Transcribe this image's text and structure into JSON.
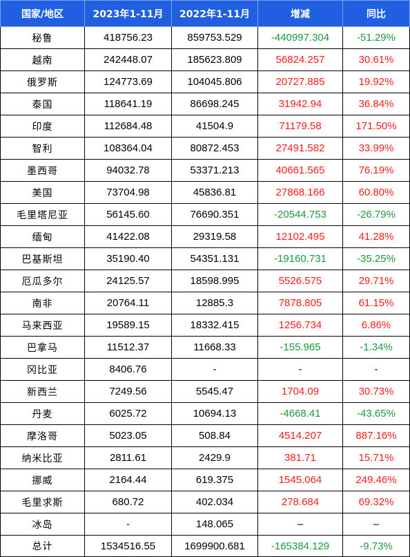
{
  "table": {
    "headers": [
      "国家/地区",
      "2023年1-11月",
      "2022年1-11月",
      "增减",
      "同比"
    ],
    "colors": {
      "header_bg": "#1f5fe0",
      "increase": "#ff1a1a",
      "decrease": "#1a9a3c"
    },
    "rows": [
      {
        "name": "秘鲁",
        "y2023": "418756.23",
        "y2022": "859753.529",
        "change": "-440997.304",
        "yoy": "-51.29%",
        "dir": "neg"
      },
      {
        "name": "越南",
        "y2023": "242448.07",
        "y2022": "185623.809",
        "change": "56824.257",
        "yoy": "30.61%",
        "dir": "pos"
      },
      {
        "name": "俄罗斯",
        "y2023": "124773.69",
        "y2022": "104045.806",
        "change": "20727.885",
        "yoy": "19.92%",
        "dir": "pos"
      },
      {
        "name": "泰国",
        "y2023": "118641.19",
        "y2022": "86698.245",
        "change": "31942.94",
        "yoy": "36.84%",
        "dir": "pos"
      },
      {
        "name": "印度",
        "y2023": "112684.48",
        "y2022": "41504.9",
        "change": "71179.58",
        "yoy": "171.50%",
        "dir": "pos"
      },
      {
        "name": "智利",
        "y2023": "108364.04",
        "y2022": "80872.453",
        "change": "27491.582",
        "yoy": "33.99%",
        "dir": "pos"
      },
      {
        "name": "墨西哥",
        "y2023": "94032.78",
        "y2022": "53371.213",
        "change": "40661.565",
        "yoy": "76.19%",
        "dir": "pos"
      },
      {
        "name": "美国",
        "y2023": "73704.98",
        "y2022": "45836.81",
        "change": "27868.166",
        "yoy": "60.80%",
        "dir": "pos"
      },
      {
        "name": "毛里塔尼亚",
        "y2023": "56145.60",
        "y2022": "76690.351",
        "change": "-20544.753",
        "yoy": "-26.79%",
        "dir": "neg"
      },
      {
        "name": "缅甸",
        "y2023": "41422.08",
        "y2022": "29319.58",
        "change": "12102.495",
        "yoy": "41.28%",
        "dir": "pos"
      },
      {
        "name": "巴基斯坦",
        "y2023": "35190.40",
        "y2022": "54351.131",
        "change": "-19160.731",
        "yoy": "-35.25%",
        "dir": "neg"
      },
      {
        "name": "厄瓜多尔",
        "y2023": "24125.57",
        "y2022": "18598.995",
        "change": "5526.575",
        "yoy": "29.71%",
        "dir": "pos"
      },
      {
        "name": "南非",
        "y2023": "20764.11",
        "y2022": "12885.3",
        "change": "7878.805",
        "yoy": "61.15%",
        "dir": "pos"
      },
      {
        "name": "马来西亚",
        "y2023": "19589.15",
        "y2022": "18332.415",
        "change": "1256.734",
        "yoy": "6.86%",
        "dir": "pos"
      },
      {
        "name": "巴拿马",
        "y2023": "11512.37",
        "y2022": "11668.33",
        "change": "-155.965",
        "yoy": "-1.34%",
        "dir": "neg"
      },
      {
        "name": "冈比亚",
        "y2023": "8406.76",
        "y2022": "-",
        "change": "-",
        "yoy": "-",
        "dir": "neu"
      },
      {
        "name": "新西兰",
        "y2023": "7249.56",
        "y2022": "5545.47",
        "change": "1704.09",
        "yoy": "30.73%",
        "dir": "pos"
      },
      {
        "name": "丹麦",
        "y2023": "6025.72",
        "y2022": "10694.13",
        "change": "-4668.41",
        "yoy": "-43.65%",
        "dir": "neg"
      },
      {
        "name": "摩洛哥",
        "y2023": "5023.05",
        "y2022": "508.84",
        "change": "4514.207",
        "yoy": "887.16%",
        "dir": "pos"
      },
      {
        "name": "纳米比亚",
        "y2023": "2811.61",
        "y2022": "2429.9",
        "change": "381.71",
        "yoy": "15.71%",
        "dir": "pos"
      },
      {
        "name": "挪威",
        "y2023": "2164.44",
        "y2022": "619.375",
        "change": "1545.064",
        "yoy": "249.46%",
        "dir": "pos"
      },
      {
        "name": "毛里求斯",
        "y2023": "680.72",
        "y2022": "402.034",
        "change": "278.684",
        "yoy": "69.32%",
        "dir": "pos"
      },
      {
        "name": "冰岛",
        "y2023": "-",
        "y2022": "148.065",
        "change": "–",
        "yoy": "–",
        "dir": "neu"
      },
      {
        "name": "总计",
        "y2023": "1534516.55",
        "y2022": "1699900.681",
        "change": "-165384.129",
        "yoy": "-9.73%",
        "dir": "neg"
      }
    ]
  }
}
